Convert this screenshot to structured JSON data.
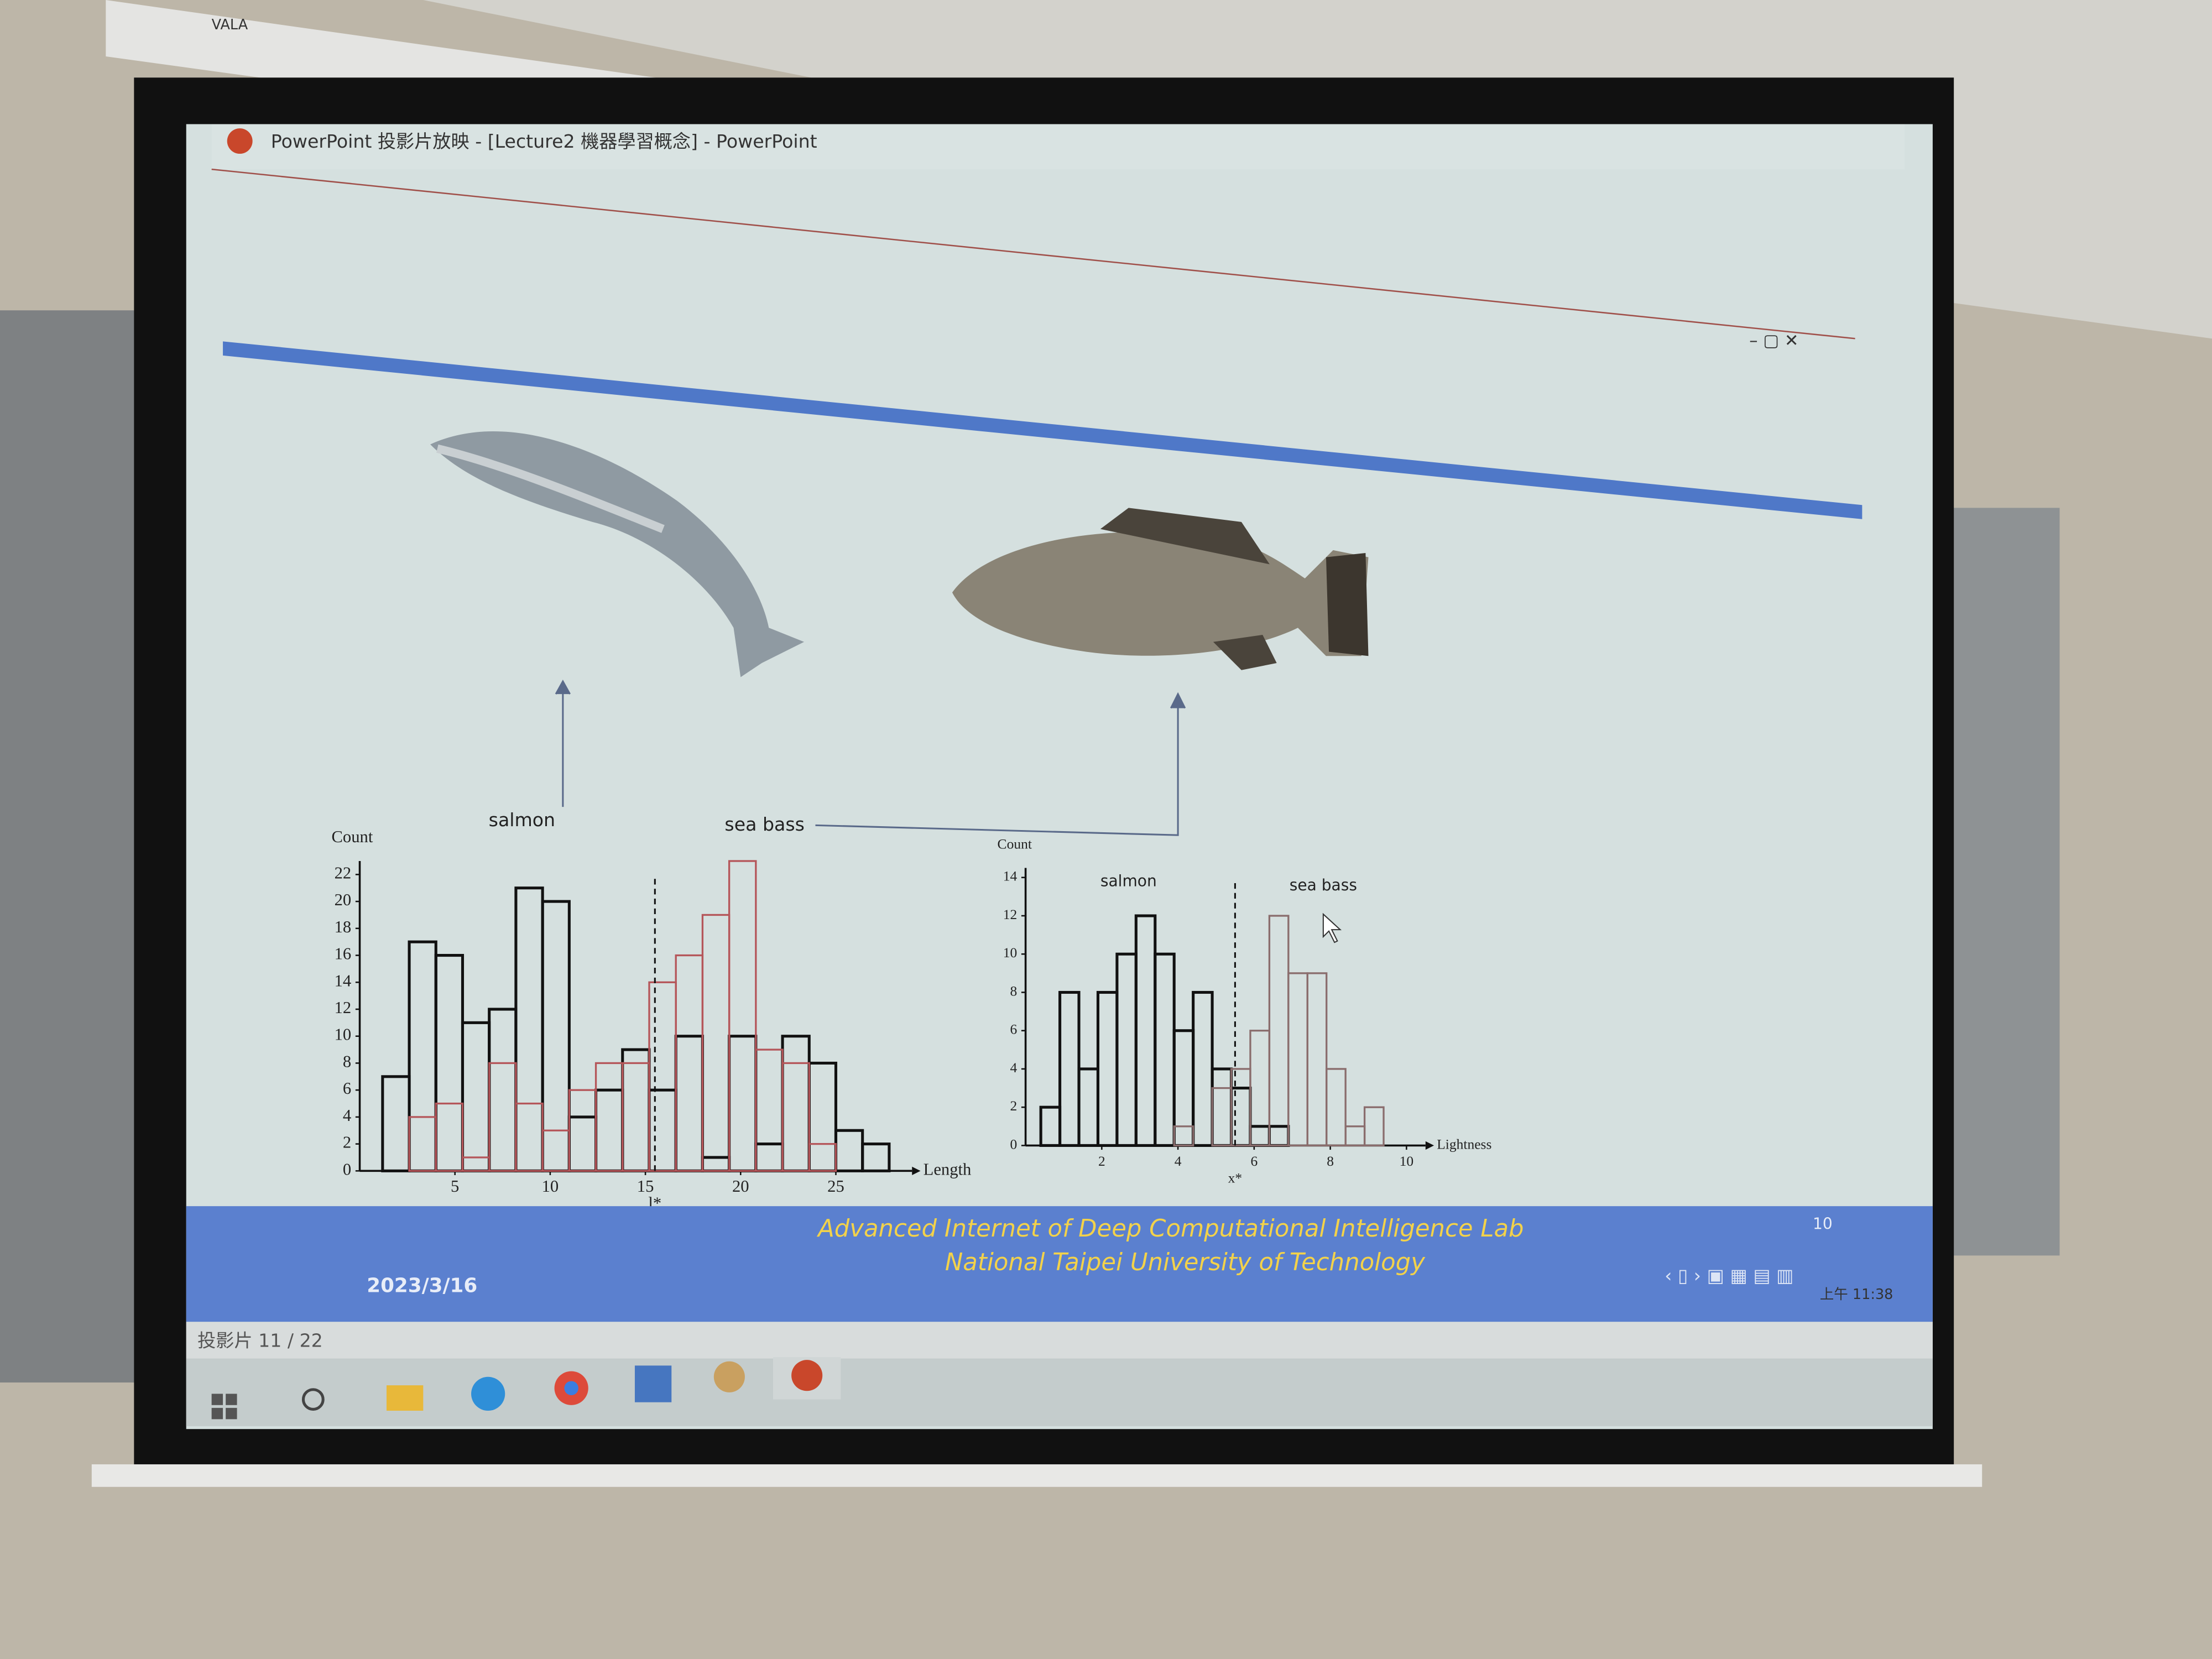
{
  "screen_brand": "VALA",
  "window": {
    "title": "PowerPoint 投影片放映 - [Lecture2 機器學習概念] - PowerPoint"
  },
  "slide": {
    "charts": [
      {
        "type": "histogram",
        "y_label": "Count",
        "x_label": "Length",
        "threshold": 15.5,
        "threshold_label": "l*",
        "bins": [
          1.2,
          2.6,
          4.0,
          5.4,
          6.8,
          8.2,
          9.6,
          11.0,
          12.4,
          13.8,
          15.2,
          16.6,
          18.0,
          19.4,
          20.8,
          22.2,
          23.6,
          25.0,
          26.4,
          27.8
        ],
        "series": [
          {
            "name": "salmon",
            "color": "#111111",
            "values": [
              7,
              17,
              16,
              11,
              12,
              21,
              20,
              4,
              6,
              9,
              6,
              10,
              1,
              10,
              2,
              10,
              8,
              3,
              2
            ]
          },
          {
            "name": "sea bass",
            "color": "#b5565a",
            "values": [
              0,
              4,
              5,
              1,
              8,
              5,
              3,
              6,
              8,
              8,
              14,
              16,
              19,
              23,
              9,
              8,
              2,
              0,
              0
            ]
          }
        ],
        "xlim": [
          0,
          29
        ],
        "xticks": [
          5,
          10,
          15,
          20,
          25
        ],
        "ylim": [
          0,
          23
        ],
        "yticks": [
          0,
          2,
          4,
          6,
          8,
          10,
          12,
          14,
          16,
          18,
          20,
          22
        ]
      },
      {
        "type": "histogram",
        "y_label": "Count",
        "x_label": "Lightness",
        "threshold": 5.5,
        "threshold_label": "x*",
        "bins": [
          0.4,
          0.9,
          1.4,
          1.9,
          2.4,
          2.9,
          3.4,
          3.9,
          4.4,
          4.9,
          5.4,
          5.9,
          6.4,
          6.9,
          7.4,
          7.9,
          8.4,
          8.9,
          9.4,
          9.9
        ],
        "series": [
          {
            "name": "salmon",
            "color": "#111111",
            "values": [
              2,
              8,
              4,
              8,
              10,
              12,
              10,
              6,
              8,
              4,
              3,
              1,
              1,
              0,
              0,
              0,
              0,
              0,
              0
            ]
          },
          {
            "name": "sea bass",
            "color": "#8a6d6d",
            "values": [
              0,
              0,
              0,
              0,
              0,
              0,
              0,
              1,
              0,
              3,
              4,
              6,
              12,
              9,
              9,
              4,
              1,
              2,
              0
            ]
          }
        ],
        "xlim": [
          0,
          10.5
        ],
        "xticks": [
          2,
          4,
          6,
          8,
          10
        ],
        "ylim": [
          0,
          14.5
        ],
        "yticks": [
          0,
          2,
          4,
          6,
          8,
          10,
          12,
          14
        ]
      }
    ],
    "footer": {
      "lines": [
        "Advanced Internet of Deep Computational Intelligence Lab",
        "National Taipei University of Technology"
      ],
      "date": "2023/3/16",
      "page": "10"
    }
  },
  "status_bar": {
    "slide_counter": "投影片 11 / 22"
  },
  "taskbar": {
    "clock": "上午 11:38"
  }
}
